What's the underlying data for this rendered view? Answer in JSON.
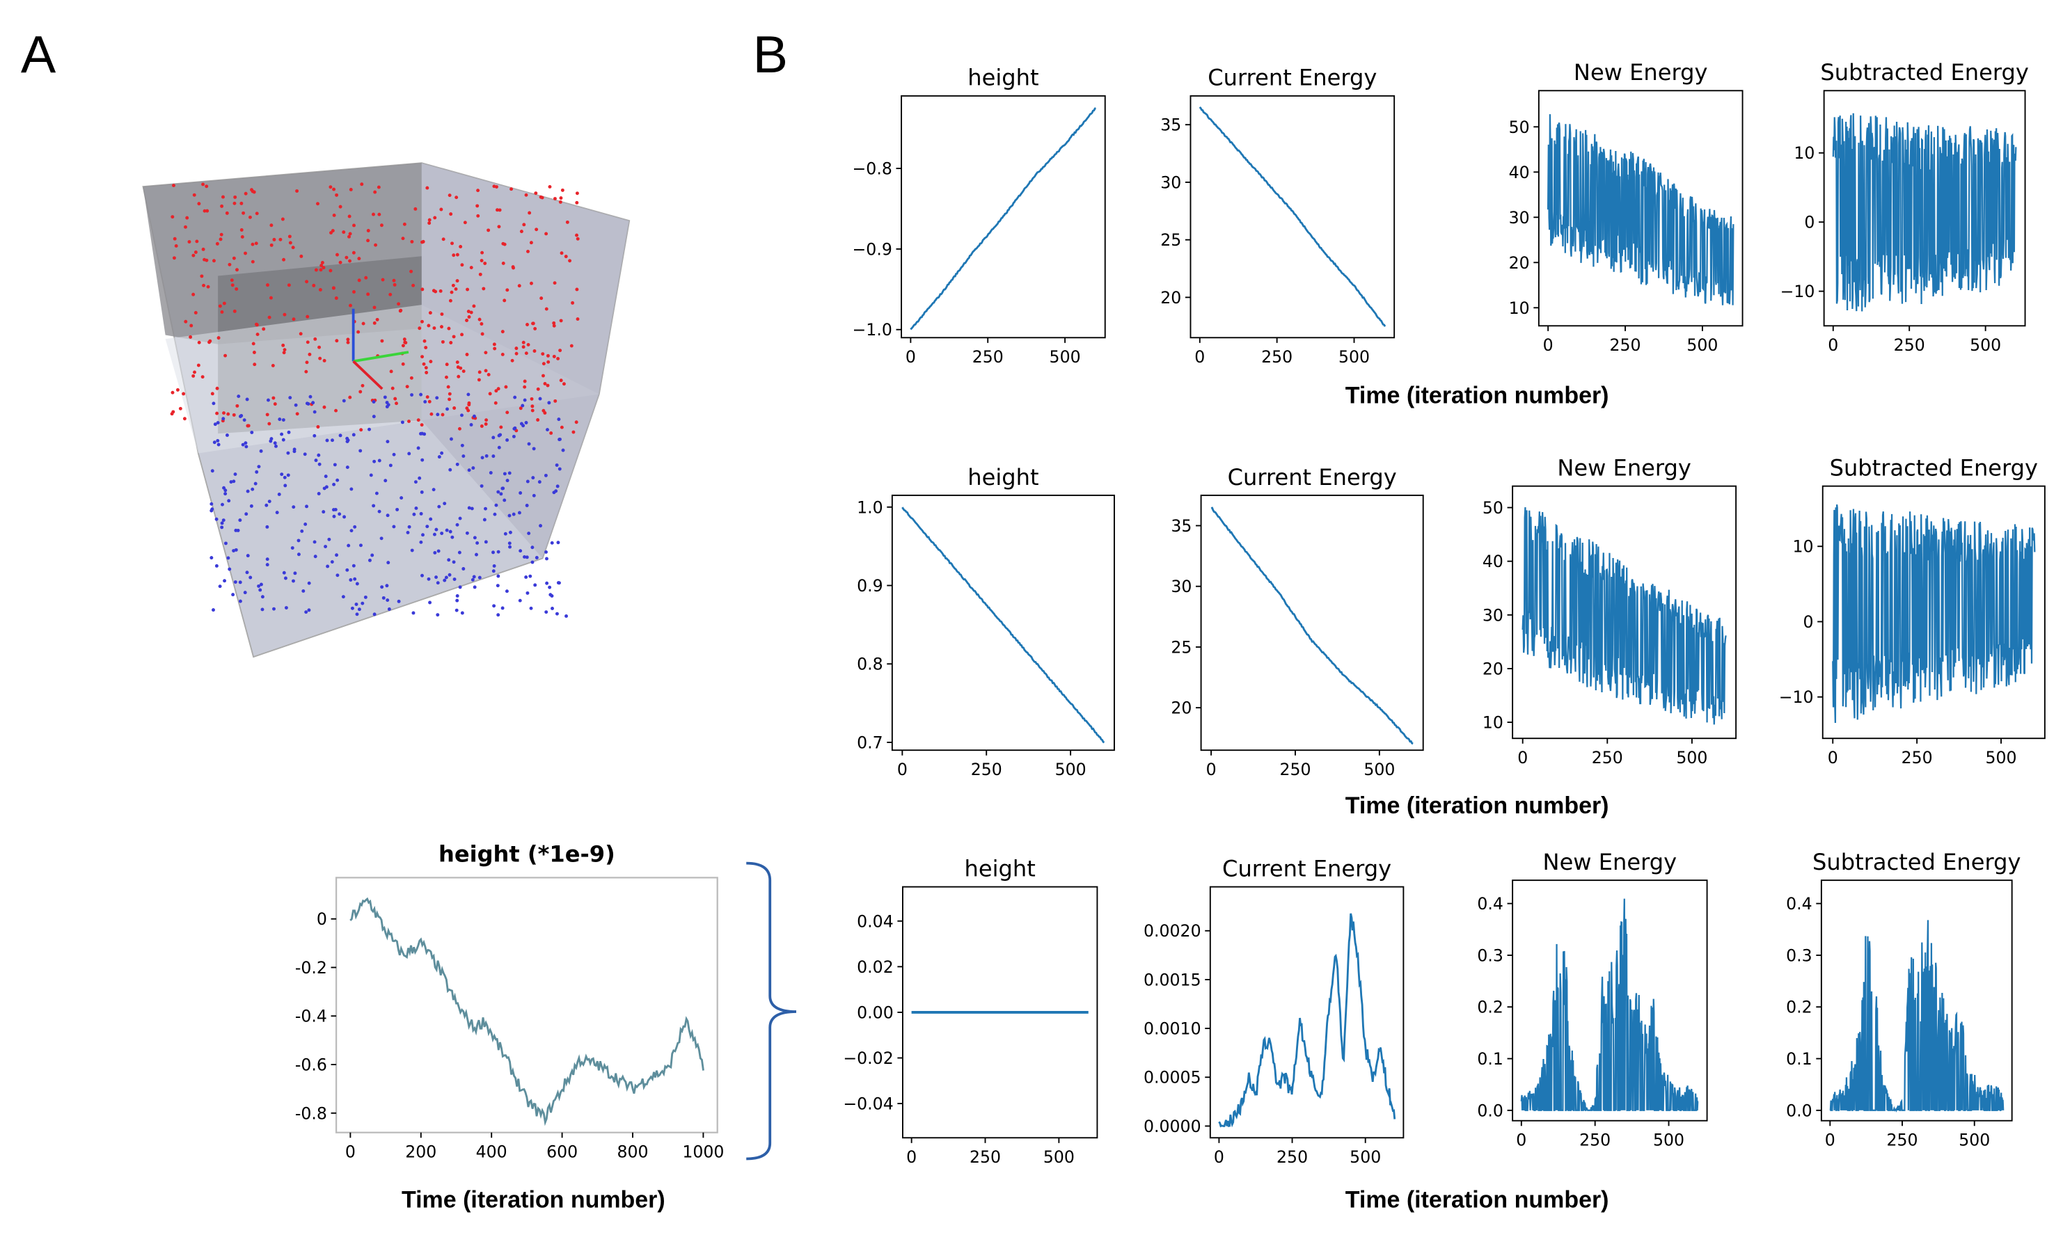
{
  "panels": {
    "a_label": "A",
    "b_label": "B"
  },
  "colors": {
    "line": "#1f77b4",
    "walk": "#5e8e9c",
    "red_particles": "#e8232a",
    "blue_particles": "#3a3ad8",
    "box": "#b8bccb"
  },
  "xlabels": [
    "Time (iteration number)",
    "Time (iteration number)",
    "Time (iteration number)",
    "Time (iteration number)"
  ],
  "chart_data": [
    {
      "id": "inset",
      "type": "line",
      "title": "height (*1e-9)",
      "xlim": [
        -40,
        1040
      ],
      "ylim": [
        -0.88,
        0.17
      ],
      "xticks": [
        0,
        200,
        400,
        600,
        800,
        1000
      ],
      "xtick_labels": [
        "0",
        "200",
        "400",
        "600",
        "800",
        "1000"
      ],
      "yticks": [
        0,
        -0.2,
        -0.4,
        -0.6,
        -0.8
      ],
      "ytick_labels": [
        "0",
        "-0.2",
        "-0.4",
        "-0.6",
        "-0.8"
      ],
      "x": [
        0,
        50,
        100,
        150,
        200,
        250,
        300,
        350,
        380,
        450,
        500,
        550,
        600,
        650,
        700,
        750,
        800,
        850,
        900,
        950,
        1000
      ],
      "y": [
        0,
        0.08,
        -0.05,
        -0.15,
        -0.1,
        -0.2,
        -0.35,
        -0.45,
        -0.42,
        -0.6,
        -0.75,
        -0.82,
        -0.7,
        -0.58,
        -0.6,
        -0.65,
        -0.7,
        -0.65,
        -0.62,
        -0.42,
        -0.6
      ]
    },
    {
      "id": "r1-height",
      "type": "line",
      "title": "height",
      "xlim": [
        -30,
        630
      ],
      "ylim": [
        -1.01,
        -0.71
      ],
      "xticks": [
        0,
        250,
        500
      ],
      "xtick_labels": [
        "0",
        "250",
        "500"
      ],
      "yticks": [
        -0.8,
        -0.9,
        -1.0
      ],
      "ytick_labels": [
        "−0.8",
        "−0.9",
        "−1.0"
      ],
      "x": [
        0,
        100,
        200,
        300,
        400,
        500,
        600
      ],
      "y": [
        -1.0,
        -0.955,
        -0.905,
        -0.86,
        -0.81,
        -0.77,
        -0.725
      ]
    },
    {
      "id": "r1-current",
      "type": "line",
      "title": "Current Energy",
      "xlim": [
        -30,
        630
      ],
      "ylim": [
        16.5,
        37.5
      ],
      "xticks": [
        0,
        250,
        500
      ],
      "xtick_labels": [
        "0",
        "250",
        "500"
      ],
      "yticks": [
        20,
        25,
        30,
        35
      ],
      "ytick_labels": [
        "20",
        "25",
        "30",
        "35"
      ],
      "x": [
        0,
        100,
        200,
        300,
        400,
        500,
        600
      ],
      "y": [
        36.5,
        33.5,
        30.5,
        27.5,
        24,
        21,
        17.5
      ]
    },
    {
      "id": "r1-new",
      "type": "noisy",
      "title": "New Energy",
      "xlim": [
        -30,
        630
      ],
      "ylim": [
        6,
        58
      ],
      "xticks": [
        0,
        250,
        500
      ],
      "xtick_labels": [
        "0",
        "250",
        "500"
      ],
      "yticks": [
        10,
        20,
        30,
        40,
        50
      ],
      "ytick_labels": [
        "10",
        "20",
        "30",
        "40",
        "50"
      ],
      "x": [
        0,
        100,
        200,
        300,
        400,
        500,
        600
      ],
      "upper": [
        53,
        50,
        47,
        44,
        38,
        33,
        30
      ],
      "lower": [
        24,
        20,
        18,
        15,
        13,
        11,
        9
      ]
    },
    {
      "id": "r1-sub",
      "type": "noisy",
      "title": "Subtracted Energy",
      "xlim": [
        -30,
        630
      ],
      "ylim": [
        -15,
        19
      ],
      "xticks": [
        0,
        250,
        500
      ],
      "xtick_labels": [
        "0",
        "250",
        "500"
      ],
      "yticks": [
        -10,
        0,
        10
      ],
      "ytick_labels": [
        "−10",
        "0",
        "10"
      ],
      "x": [
        0,
        100,
        200,
        300,
        400,
        500,
        600
      ],
      "upper": [
        16,
        16,
        15,
        14,
        14,
        14,
        13
      ],
      "lower": [
        -13,
        -13,
        -12,
        -12,
        -11,
        -10,
        -9
      ]
    },
    {
      "id": "r2-height",
      "type": "line",
      "title": "height",
      "xlim": [
        -30,
        630
      ],
      "ylim": [
        0.69,
        1.015
      ],
      "xticks": [
        0,
        250,
        500
      ],
      "xtick_labels": [
        "0",
        "250",
        "500"
      ],
      "yticks": [
        0.7,
        0.8,
        0.9,
        1.0
      ],
      "ytick_labels": [
        "0.7",
        "0.8",
        "0.9",
        "1.0"
      ],
      "x": [
        0,
        100,
        200,
        300,
        400,
        500,
        600
      ],
      "y": [
        1.0,
        0.95,
        0.9,
        0.85,
        0.8,
        0.75,
        0.7
      ]
    },
    {
      "id": "r2-current",
      "type": "line",
      "title": "Current Energy",
      "xlim": [
        -30,
        630
      ],
      "ylim": [
        16.5,
        37.5
      ],
      "xticks": [
        0,
        250,
        500
      ],
      "xtick_labels": [
        "0",
        "250",
        "500"
      ],
      "yticks": [
        20,
        25,
        30,
        35
      ],
      "ytick_labels": [
        "20",
        "25",
        "30",
        "35"
      ],
      "x": [
        0,
        100,
        200,
        300,
        400,
        500,
        600
      ],
      "y": [
        36.5,
        33,
        29.5,
        25.5,
        22.5,
        20,
        17
      ]
    },
    {
      "id": "r2-new",
      "type": "noisy",
      "title": "New Energy",
      "xlim": [
        -30,
        630
      ],
      "ylim": [
        7,
        54
      ],
      "xticks": [
        0,
        250,
        500
      ],
      "xtick_labels": [
        "0",
        "250",
        "500"
      ],
      "yticks": [
        10,
        20,
        30,
        40,
        50
      ],
      "ytick_labels": [
        "10",
        "20",
        "30",
        "40",
        "50"
      ],
      "x": [
        0,
        100,
        200,
        300,
        400,
        500,
        600
      ],
      "upper": [
        51,
        48,
        44,
        40,
        36,
        32,
        29
      ],
      "lower": [
        23,
        19,
        16,
        14,
        12,
        10,
        9
      ]
    },
    {
      "id": "r2-sub",
      "type": "noisy",
      "title": "Subtracted Energy",
      "xlim": [
        -30,
        630
      ],
      "ylim": [
        -15.5,
        18
      ],
      "xticks": [
        0,
        250,
        500
      ],
      "xtick_labels": [
        "0",
        "250",
        "500"
      ],
      "yticks": [
        -10,
        0,
        10
      ],
      "ytick_labels": [
        "−10",
        "0",
        "10"
      ],
      "x": [
        0,
        100,
        200,
        300,
        400,
        500,
        600
      ],
      "upper": [
        16,
        15,
        15,
        14,
        14,
        13,
        13
      ],
      "lower": [
        -14,
        -13,
        -12,
        -11,
        -10,
        -9,
        -8
      ]
    },
    {
      "id": "r3-height",
      "type": "line",
      "title": "height",
      "xlim": [
        -30,
        630
      ],
      "ylim": [
        -0.055,
        0.055
      ],
      "xticks": [
        0,
        250,
        500
      ],
      "xtick_labels": [
        "0",
        "250",
        "500"
      ],
      "yticks": [
        0.04,
        0.02,
        0.0,
        -0.02,
        -0.04
      ],
      "ytick_labels": [
        "0.04",
        "0.02",
        "0.00",
        "−0.02",
        "−0.04"
      ],
      "x": [
        0,
        600
      ],
      "y": [
        0,
        0
      ]
    },
    {
      "id": "r3-current",
      "type": "line",
      "title": "Current Energy",
      "xlim": [
        -30,
        630
      ],
      "ylim": [
        -0.00012,
        0.00245
      ],
      "xticks": [
        0,
        250,
        500
      ],
      "xtick_labels": [
        "0",
        "250",
        "500"
      ],
      "yticks": [
        0,
        0.0005,
        0.001,
        0.0015,
        0.002
      ],
      "ytick_labels": [
        "0.0000",
        "0.0005",
        "0.0010",
        "0.0015",
        "0.0020"
      ],
      "x": [
        0,
        25,
        50,
        75,
        100,
        125,
        150,
        175,
        200,
        225,
        250,
        275,
        300,
        325,
        350,
        375,
        400,
        425,
        450,
        475,
        500,
        525,
        550,
        575,
        600
      ],
      "y": [
        0,
        0,
        0.0001,
        0.0002,
        0.0005,
        0.0003,
        0.0008,
        0.0009,
        0.0004,
        0.0005,
        0.0003,
        0.0011,
        0.0007,
        0.0004,
        0.0003,
        0.0012,
        0.0018,
        0.0006,
        0.0022,
        0.0017,
        0.0008,
        0.0005,
        0.0008,
        0.0004,
        0.0001
      ]
    },
    {
      "id": "r3-new",
      "type": "spikes",
      "title": "New Energy",
      "xlim": [
        -30,
        630
      ],
      "ylim": [
        -0.02,
        0.445
      ],
      "xticks": [
        0,
        250,
        500
      ],
      "xtick_labels": [
        "0",
        "250",
        "500"
      ],
      "yticks": [
        0,
        0.1,
        0.2,
        0.3,
        0.4
      ],
      "ytick_labels": [
        "0.0",
        "0.1",
        "0.2",
        "0.3",
        "0.4"
      ],
      "x": [
        0,
        25,
        50,
        75,
        100,
        125,
        150,
        175,
        200,
        225,
        250,
        275,
        300,
        325,
        350,
        375,
        400,
        425,
        450,
        475,
        500,
        525,
        550,
        575,
        600
      ],
      "upper": [
        0.03,
        0.04,
        0.05,
        0.1,
        0.18,
        0.36,
        0.33,
        0.12,
        0.04,
        0,
        0.02,
        0.31,
        0.3,
        0.36,
        0.42,
        0.25,
        0.23,
        0.17,
        0.25,
        0.08,
        0.07,
        0.04,
        0.05,
        0.05,
        0.03
      ]
    },
    {
      "id": "r3-sub",
      "type": "spikes",
      "title": "Subtracted Energy",
      "xlim": [
        -30,
        630
      ],
      "ylim": [
        -0.02,
        0.445
      ],
      "xticks": [
        0,
        250,
        500
      ],
      "xtick_labels": [
        "0",
        "250",
        "500"
      ],
      "yticks": [
        0,
        0.1,
        0.2,
        0.3,
        0.4
      ],
      "ytick_labels": [
        "0.0",
        "0.1",
        "0.2",
        "0.3",
        "0.4"
      ],
      "x": [
        0,
        25,
        50,
        75,
        100,
        125,
        150,
        175,
        200,
        225,
        250,
        275,
        300,
        325,
        350,
        375,
        400,
        425,
        450,
        475,
        500,
        525,
        550,
        575,
        600
      ],
      "upper": [
        0.03,
        0.04,
        0.05,
        0.1,
        0.17,
        0.36,
        0.33,
        0.12,
        0.04,
        0,
        0.02,
        0.31,
        0.3,
        0.36,
        0.42,
        0.25,
        0.23,
        0.17,
        0.25,
        0.08,
        0.07,
        0.04,
        0.05,
        0.05,
        0.03
      ]
    }
  ]
}
